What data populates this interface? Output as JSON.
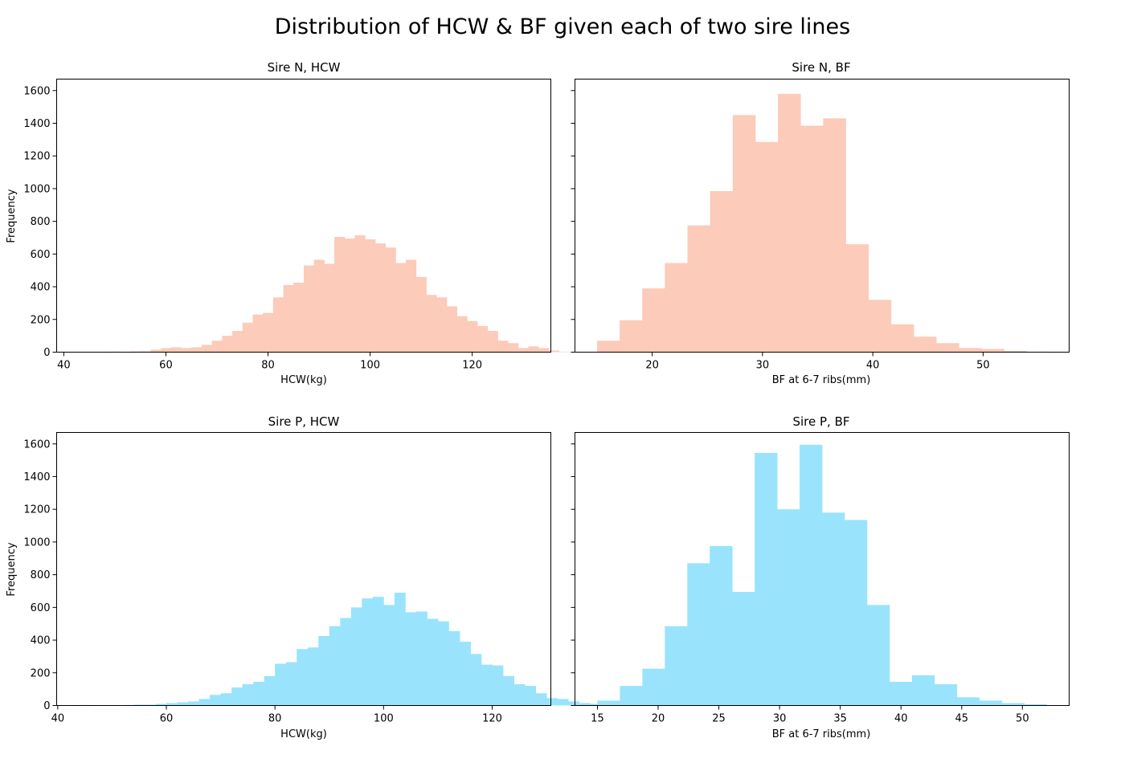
{
  "figure": {
    "title": "Distribution of HCW & BF given each of two sire lines"
  },
  "colors": {
    "sire_n": "#fccbb9",
    "sire_p": "#99e4fc"
  },
  "chart_data": [
    {
      "type": "bar",
      "histogram": true,
      "title": "Sire N, HCW",
      "xlabel": "HCW(kg)",
      "ylabel": "Frequency",
      "xlim": [
        38.6,
        135.4
      ],
      "ylim": [
        0,
        1670
      ],
      "xticks": [
        40,
        60,
        80,
        100,
        120
      ],
      "yticks": [
        0,
        200,
        400,
        600,
        800,
        1000,
        1200,
        1400,
        1600
      ],
      "bin_start": 43,
      "bin_width": 2,
      "color": "sire_n",
      "values": [
        2,
        1,
        0,
        3,
        2,
        4,
        5,
        15,
        25,
        30,
        25,
        30,
        45,
        70,
        100,
        130,
        180,
        230,
        240,
        335,
        410,
        425,
        530,
        565,
        540,
        705,
        695,
        715,
        690,
        665,
        640,
        545,
        565,
        460,
        350,
        335,
        280,
        220,
        190,
        160,
        130,
        70,
        55,
        25,
        35,
        25,
        10,
        3,
        2
      ]
    },
    {
      "type": "bar",
      "histogram": true,
      "title": "Sire N, BF",
      "xlabel": "BF at 6-7 ribs(mm)",
      "ylabel": "",
      "xlim": [
        13.0,
        57.8
      ],
      "ylim": [
        0,
        1670
      ],
      "xticks": [
        20,
        30,
        40,
        50
      ],
      "yticks": [
        0,
        200,
        400,
        600,
        800,
        1000,
        1200,
        1400,
        1600
      ],
      "bin_start": 15,
      "bin_width": 2.05,
      "color": "sire_n",
      "values": [
        70,
        195,
        390,
        545,
        775,
        985,
        1450,
        1285,
        1580,
        1385,
        1430,
        660,
        320,
        170,
        95,
        55,
        25,
        20,
        8,
        3
      ]
    },
    {
      "type": "bar",
      "histogram": true,
      "title": "Sire P, HCW",
      "xlabel": "HCW(kg)",
      "ylabel": "Frequency",
      "xlim": [
        39.8,
        130.8
      ],
      "ylim": [
        0,
        1670
      ],
      "xticks": [
        40,
        60,
        80,
        100,
        120
      ],
      "yticks": [
        0,
        200,
        400,
        600,
        800,
        1000,
        1200,
        1400,
        1600
      ],
      "bin_start": 44,
      "bin_width": 2,
      "color": "sire_p",
      "values": [
        3,
        0,
        0,
        0,
        3,
        5,
        5,
        10,
        15,
        20,
        25,
        40,
        65,
        75,
        110,
        130,
        145,
        180,
        255,
        265,
        345,
        355,
        425,
        485,
        535,
        600,
        655,
        665,
        615,
        690,
        570,
        575,
        530,
        515,
        455,
        390,
        315,
        250,
        245,
        180,
        130,
        120,
        75,
        45,
        40,
        25,
        15,
        10
      ]
    },
    {
      "type": "bar",
      "histogram": true,
      "title": "Sire P, BF",
      "xlabel": "BF at 6-7 ribs(mm)",
      "ylabel": "",
      "xlim": [
        13.15,
        53.85
      ],
      "ylim": [
        0,
        1670
      ],
      "xticks": [
        15,
        20,
        25,
        30,
        35,
        40,
        45,
        50
      ],
      "yticks": [
        0,
        200,
        400,
        600,
        800,
        1000,
        1200,
        1400,
        1600
      ],
      "bin_start": 15,
      "bin_width": 1.85,
      "color": "sire_p",
      "values": [
        30,
        120,
        225,
        485,
        870,
        975,
        695,
        1545,
        1200,
        1595,
        1180,
        1135,
        615,
        145,
        185,
        130,
        50,
        30,
        15,
        8
      ]
    }
  ]
}
